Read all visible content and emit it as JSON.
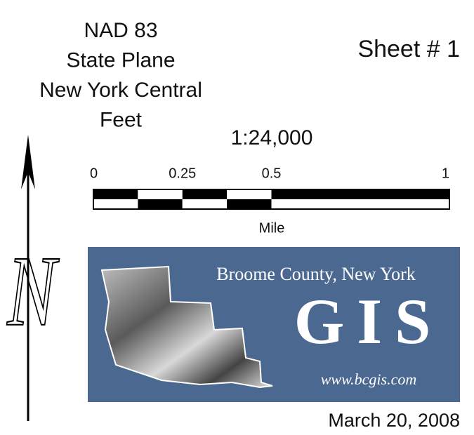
{
  "projection": {
    "lines": [
      "NAD 83",
      "State Plane",
      "New York Central",
      "Feet"
    ]
  },
  "sheet": "Sheet # 1",
  "scale": {
    "ratio": "1:24,000",
    "ticks": [
      "0",
      "0.25",
      "0.5",
      "1"
    ],
    "unit": "Mile"
  },
  "north_arrow": {
    "label": "N"
  },
  "logo": {
    "county": "Broome County, New York",
    "name": "GIS",
    "url": "www.bcgis.com"
  },
  "date": "March 20, 2008"
}
